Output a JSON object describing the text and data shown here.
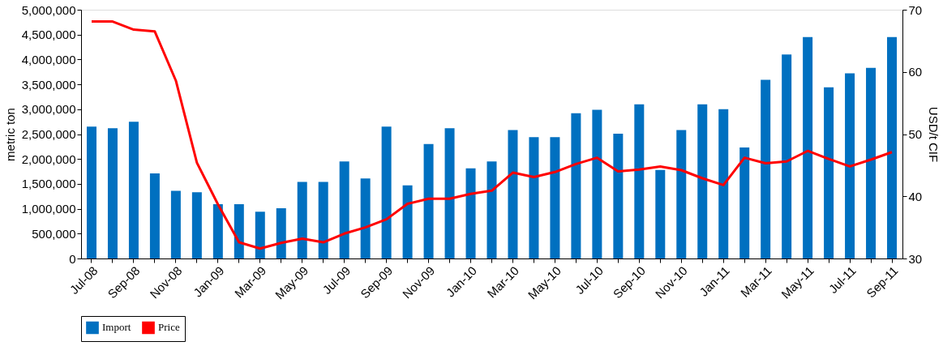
{
  "chart_data": {
    "type": "bar",
    "categories": [
      "Jul-08",
      null,
      "Sep-08",
      null,
      "Nov-08",
      null,
      "Jan-09",
      null,
      "Mar-09",
      null,
      "May-09",
      null,
      "Jul-09",
      null,
      "Sep-09",
      null,
      "Nov-09",
      null,
      "Jan-10",
      null,
      "Mar-10",
      null,
      "May-10",
      null,
      "Jul-10",
      null,
      "Sep-10",
      null,
      "Nov-10",
      null,
      "Jan-11",
      null,
      "Mar-11",
      null,
      "May-11",
      null,
      "Jul-11",
      null,
      "Sep-11"
    ],
    "series": [
      {
        "name": "Import",
        "color": "#0070c0",
        "values": [
          2650000,
          2620000,
          2750000,
          1710000,
          1360000,
          1330000,
          1090000,
          1090000,
          940000,
          1010000,
          1540000,
          1540000,
          1950000,
          1610000,
          2650000,
          1470000,
          2300000,
          2620000,
          1810000,
          1950000,
          2580000,
          2440000,
          2440000,
          2920000,
          2990000,
          2510000,
          3100000,
          1780000,
          2580000,
          3100000,
          3000000,
          2230000,
          3590000,
          4100000,
          4450000,
          3440000,
          3720000,
          3830000,
          4450000
        ]
      },
      {
        "name": "Price",
        "type": "line",
        "axis": "y2",
        "color": "#ff0000",
        "values": [
          68.1,
          68.1,
          66.8,
          66.5,
          58.6,
          45.4,
          38.7,
          32.6,
          31.6,
          32.5,
          33.2,
          32.6,
          34,
          35,
          36.3,
          38.8,
          39.6,
          39.6,
          40.4,
          40.9,
          43.8,
          43.1,
          43.9,
          45.2,
          46.2,
          44,
          44.3,
          44.8,
          44.2,
          42.9,
          41.8,
          46.2,
          45.3,
          45.6,
          47.3,
          46,
          44.8,
          45.9,
          47.1
        ]
      }
    ],
    "ylabel": "metric ton",
    "y2label": "USD/t CIF",
    "ylim": [
      0,
      5000000
    ],
    "yticks": [
      0,
      {
        "value": 500000,
        "label": "500,000"
      },
      {
        "value": 1000000,
        "label": "1,000,000"
      },
      {
        "value": 1500000,
        "label": "1,500,000"
      },
      {
        "value": 2000000,
        "label": "2,000,000"
      },
      {
        "value": 2500000,
        "label": "2,500,000"
      },
      {
        "value": 3000000,
        "label": "3,000,000"
      },
      {
        "value": 3500000,
        "label": "3,500,000"
      },
      {
        "value": 4000000,
        "label": "4,000,000"
      },
      {
        "value": 4500000,
        "label": "4,500,000"
      },
      {
        "value": 5000000,
        "label": "5,000,000"
      }
    ],
    "y2lim": [
      30,
      70
    ],
    "y2ticks": [
      30,
      40,
      50,
      60,
      70
    ],
    "legend": "bottom",
    "grid": false,
    "marker": "none",
    "line_style": "solid"
  }
}
